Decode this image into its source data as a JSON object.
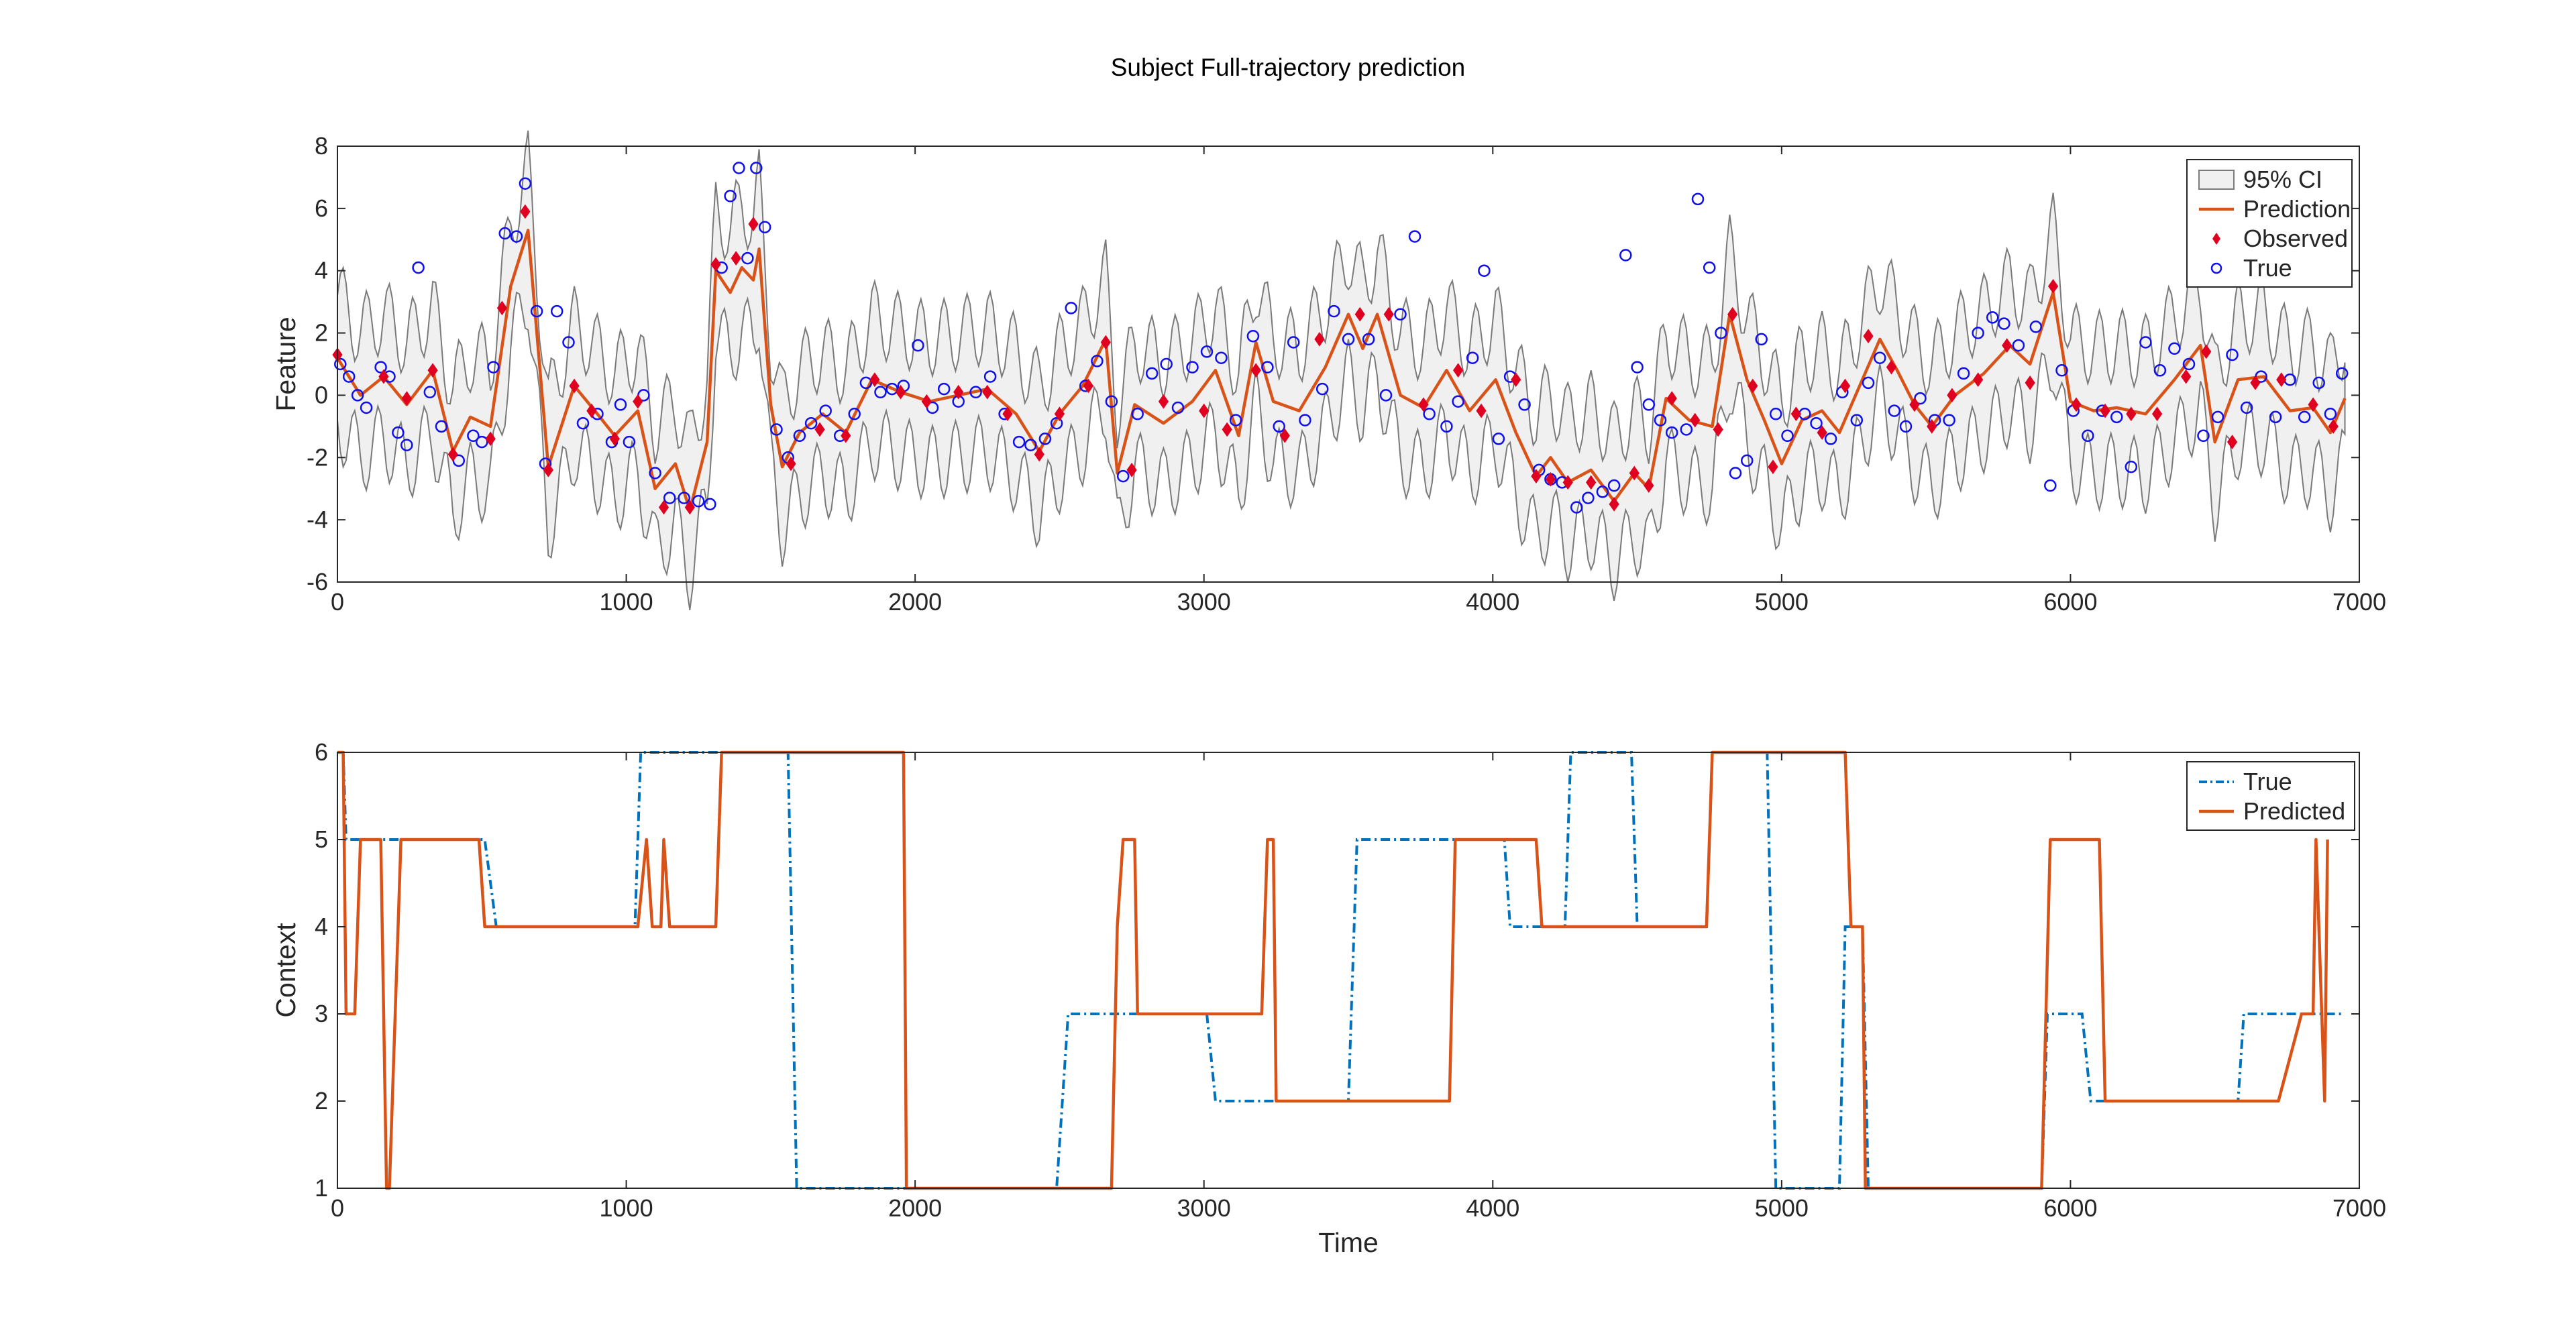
{
  "figure": {
    "title": "Subject Full-trajectory prediction"
  },
  "colors": {
    "prediction": "#d95319",
    "true_context": "#0072bd",
    "observed": "#e00020",
    "true_points": "#1010ee",
    "ci_fill": "#f0f0f0",
    "ci_edge": "#7a7a7a"
  },
  "chart_data": [
    {
      "type": "line",
      "title": "Subject Full-trajectory prediction",
      "xlabel": "",
      "ylabel": "Feature",
      "xlim": [
        0,
        7000
      ],
      "ylim": [
        -6,
        8
      ],
      "xticks": [
        0,
        1000,
        2000,
        3000,
        4000,
        5000,
        6000,
        7000
      ],
      "yticks": [
        -6,
        -4,
        -2,
        0,
        2,
        4,
        6,
        8
      ],
      "legend": {
        "position": "top-right",
        "entries": [
          "95% CI",
          "Prediction",
          "Observed",
          "True"
        ]
      },
      "series": [
        {
          "name": "Prediction",
          "x": [
            0,
            80,
            160,
            240,
            330,
            400,
            460,
            530,
            600,
            660,
            730,
            820,
            900,
            960,
            1040,
            1100,
            1170,
            1220,
            1280,
            1310,
            1360,
            1400,
            1440,
            1460,
            1500,
            1540,
            1600,
            1680,
            1760,
            1850,
            1950,
            2050,
            2150,
            2250,
            2350,
            2430,
            2500,
            2580,
            2660,
            2700,
            2760,
            2860,
            2960,
            3040,
            3120,
            3180,
            3240,
            3330,
            3420,
            3500,
            3550,
            3600,
            3680,
            3760,
            3840,
            3920,
            4010,
            4080,
            4150,
            4200,
            4260,
            4340,
            4420,
            4490,
            4540,
            4600,
            4680,
            4760,
            4820,
            4880,
            4940,
            5000,
            5070,
            5140,
            5200,
            5270,
            5340,
            5400,
            5460,
            5520,
            5600,
            5700,
            5790,
            5860,
            5940,
            6000,
            6080,
            6160,
            6260,
            6360,
            6450,
            6500,
            6580,
            6670,
            6760,
            6840,
            6900,
            6950
          ],
          "values": [
            1.2,
            0.0,
            0.6,
            -0.3,
            0.8,
            -1.8,
            -0.7,
            -1.0,
            3.5,
            5.3,
            -2.3,
            0.3,
            -0.6,
            -1.3,
            -0.5,
            -3.0,
            -2.2,
            -3.7,
            -1.5,
            4.0,
            3.3,
            4.1,
            3.7,
            4.7,
            -0.3,
            -2.3,
            -1.2,
            -0.6,
            -1.2,
            0.5,
            0.1,
            -0.2,
            0.0,
            0.2,
            -0.6,
            -1.8,
            -0.6,
            0.3,
            1.8,
            -2.5,
            -0.3,
            -0.9,
            -0.2,
            0.8,
            -1.3,
            1.7,
            -0.2,
            -0.5,
            0.9,
            2.6,
            1.5,
            2.6,
            0.0,
            -0.4,
            0.8,
            -0.5,
            0.5,
            -1.2,
            -2.6,
            -2.0,
            -2.8,
            -2.4,
            -3.4,
            -2.5,
            -3.0,
            -0.1,
            -0.8,
            -1.0,
            2.6,
            0.5,
            -0.8,
            -2.2,
            -0.8,
            -0.5,
            -1.2,
            0.3,
            1.8,
            0.8,
            -0.3,
            -1.0,
            0.0,
            0.7,
            1.6,
            1.0,
            3.3,
            -0.2,
            -0.5,
            -0.4,
            -0.6,
            0.5,
            1.6,
            -1.5,
            0.5,
            0.6,
            -0.5,
            -0.4,
            -1.2,
            -0.1
          ]
        },
        {
          "name": "Observed",
          "x": [
            0,
            160,
            240,
            330,
            400,
            530,
            570,
            650,
            730,
            820,
            880,
            960,
            1040,
            1130,
            1220,
            1310,
            1380,
            1440,
            1570,
            1670,
            1760,
            1860,
            1950,
            2040,
            2150,
            2250,
            2320,
            2430,
            2500,
            2600,
            2660,
            2750,
            2860,
            3000,
            3080,
            3180,
            3280,
            3400,
            3540,
            3640,
            3760,
            3880,
            3960,
            4080,
            4150,
            4200,
            4260,
            4340,
            4420,
            4490,
            4540,
            4620,
            4700,
            4780,
            4830,
            4900,
            4970,
            5050,
            5140,
            5220,
            5300,
            5380,
            5460,
            5520,
            5590,
            5680,
            5780,
            5860,
            5940,
            6020,
            6120,
            6210,
            6300,
            6400,
            6470,
            6560,
            6640,
            6730,
            6840,
            6910
          ],
          "values": [
            1.3,
            0.6,
            -0.1,
            0.8,
            -1.9,
            -1.4,
            2.8,
            5.9,
            -2.4,
            0.3,
            -0.5,
            -1.4,
            -0.2,
            -3.6,
            -3.6,
            4.2,
            4.4,
            5.5,
            -2.2,
            -1.1,
            -1.3,
            0.5,
            0.1,
            -0.2,
            0.1,
            0.1,
            -0.6,
            -1.9,
            -0.6,
            0.3,
            1.7,
            -2.4,
            -0.2,
            -0.5,
            -1.1,
            0.8,
            -1.3,
            1.8,
            2.6,
            2.6,
            -0.3,
            0.8,
            -0.5,
            0.5,
            -2.6,
            -2.7,
            -2.8,
            -2.8,
            -3.5,
            -2.5,
            -2.9,
            -0.1,
            -0.8,
            -1.1,
            2.6,
            0.3,
            -2.3,
            -0.6,
            -1.2,
            0.3,
            1.9,
            0.9,
            -0.3,
            -1.0,
            0.0,
            0.5,
            1.6,
            0.4,
            3.5,
            -0.3,
            -0.5,
            -0.6,
            -0.6,
            0.6,
            1.4,
            -1.5,
            0.4,
            0.5,
            -0.3,
            -1.0
          ]
        },
        {
          "name": "True",
          "x": [
            10,
            40,
            70,
            100,
            150,
            180,
            210,
            240,
            280,
            320,
            360,
            420,
            470,
            500,
            540,
            580,
            620,
            650,
            690,
            720,
            760,
            800,
            850,
            900,
            950,
            980,
            1010,
            1060,
            1100,
            1150,
            1200,
            1250,
            1290,
            1330,
            1360,
            1390,
            1420,
            1450,
            1480,
            1520,
            1560,
            1600,
            1640,
            1690,
            1740,
            1790,
            1830,
            1880,
            1920,
            1960,
            2010,
            2060,
            2100,
            2150,
            2210,
            2260,
            2310,
            2360,
            2400,
            2450,
            2490,
            2540,
            2590,
            2630,
            2680,
            2720,
            2770,
            2820,
            2870,
            2910,
            2960,
            3010,
            3060,
            3110,
            3170,
            3220,
            3260,
            3310,
            3350,
            3410,
            3450,
            3500,
            3570,
            3630,
            3680,
            3730,
            3780,
            3840,
            3880,
            3930,
            3970,
            4020,
            4060,
            4110,
            4160,
            4200,
            4240,
            4290,
            4330,
            4380,
            4420,
            4460,
            4500,
            4540,
            4580,
            4620,
            4670,
            4710,
            4750,
            4790,
            4840,
            4880,
            4930,
            4980,
            5020,
            5080,
            5120,
            5170,
            5210,
            5260,
            5300,
            5340,
            5390,
            5430,
            5480,
            5530,
            5580,
            5630,
            5680,
            5730,
            5770,
            5820,
            5880,
            5930,
            5970,
            6010,
            6060,
            6110,
            6160,
            6210,
            6260,
            6310,
            6360,
            6410,
            6460,
            6510,
            6560,
            6610,
            6660,
            6710,
            6760,
            6810,
            6860,
            6900,
            6940
          ],
          "values": [
            1.0,
            0.6,
            0.0,
            -0.4,
            0.9,
            0.6,
            -1.2,
            -1.6,
            4.1,
            0.1,
            -1.0,
            -2.1,
            -1.3,
            -1.5,
            0.9,
            5.2,
            5.1,
            6.8,
            2.7,
            -2.2,
            2.7,
            1.7,
            -0.9,
            -0.6,
            -1.5,
            -0.3,
            -1.5,
            0.0,
            -2.5,
            -3.3,
            -3.3,
            -3.4,
            -3.5,
            4.1,
            6.4,
            7.3,
            4.4,
            7.3,
            5.4,
            -1.1,
            -2.0,
            -1.3,
            -0.9,
            -0.5,
            -1.3,
            -0.6,
            0.4,
            0.1,
            0.2,
            0.3,
            1.6,
            -0.4,
            0.2,
            -0.2,
            0.1,
            0.6,
            -0.6,
            -1.5,
            -1.6,
            -1.4,
            -0.9,
            2.8,
            0.3,
            1.1,
            -0.2,
            -2.6,
            -0.6,
            0.7,
            1.0,
            -0.4,
            0.9,
            1.4,
            1.2,
            -0.8,
            1.9,
            0.9,
            -1.0,
            1.7,
            -0.8,
            0.2,
            2.7,
            1.8,
            1.8,
            0.0,
            2.6,
            5.1,
            -0.6,
            -1.0,
            -0.2,
            1.2,
            4.0,
            -1.4,
            0.6,
            -0.3,
            -2.4,
            -2.7,
            -2.8,
            -3.6,
            -3.3,
            -3.1,
            -2.9,
            4.5,
            0.9,
            -0.3,
            -0.8,
            -1.2,
            -1.1,
            6.3,
            4.1,
            2.0,
            -2.5,
            -2.1,
            1.8,
            -0.6,
            -1.3,
            -0.6,
            -0.9,
            -1.4,
            0.1,
            -0.8,
            0.4,
            1.2,
            -0.5,
            -1.0,
            -0.1,
            -0.8,
            -0.8,
            0.7,
            2.0,
            2.5,
            2.3,
            1.6,
            2.2,
            -2.9,
            0.8,
            -0.5,
            -1.3,
            -0.5,
            -0.7,
            -2.3,
            1.7,
            0.8,
            1.5,
            1.0,
            -1.3,
            -0.7,
            1.3,
            -0.4,
            0.6,
            -0.7,
            0.5,
            -0.7,
            0.4,
            -0.6,
            0.7
          ]
        }
      ]
    },
    {
      "type": "line",
      "title": "",
      "xlabel": "Time",
      "ylabel": "Context",
      "xlim": [
        0,
        7000
      ],
      "ylim": [
        1,
        6
      ],
      "xticks": [
        0,
        1000,
        2000,
        3000,
        4000,
        5000,
        6000,
        7000
      ],
      "yticks": [
        1,
        2,
        3,
        4,
        5,
        6
      ],
      "legend": {
        "position": "top-right",
        "entries": [
          "True",
          "Predicted"
        ]
      },
      "series": [
        {
          "name": "True",
          "x": [
            0,
            20,
            30,
            510,
            550,
            1030,
            1050,
            1140,
            1150,
            1320,
            1340,
            1560,
            1590,
            1940,
            1960,
            2490,
            2530,
            2680,
            2700,
            3010,
            3040,
            3500,
            3530,
            3850,
            3870,
            4040,
            4060,
            4200,
            4220,
            4250,
            4270,
            4480,
            4500,
            4740,
            4760,
            4950,
            4980,
            5200,
            5220,
            5280,
            5300,
            5900,
            5920,
            6040,
            6070,
            6580,
            6600,
            6940
          ],
          "values": [
            6,
            6,
            5,
            5,
            4,
            4,
            6,
            6,
            6,
            6,
            6,
            6,
            1,
            1,
            1,
            1,
            3,
            3,
            3,
            3,
            2,
            2,
            5,
            5,
            5,
            5,
            4,
            4,
            4,
            4,
            6,
            6,
            4,
            4,
            6,
            6,
            1,
            1,
            4,
            4,
            1,
            1,
            3,
            3,
            2,
            2,
            3,
            3
          ]
        },
        {
          "name": "Predicted",
          "x": [
            0,
            20,
            30,
            60,
            80,
            120,
            150,
            170,
            180,
            220,
            240,
            300,
            490,
            510,
            1020,
            1040,
            1070,
            1090,
            1100,
            1120,
            1130,
            1150,
            1160,
            1170,
            1310,
            1330,
            1350,
            1930,
            1960,
            1970,
            2660,
            2680,
            2700,
            2720,
            2760,
            2770,
            2780,
            3170,
            3200,
            3220,
            3240,
            3250,
            3850,
            3870,
            4150,
            4170,
            4180,
            4740,
            4760,
            5180,
            5200,
            5220,
            5240,
            5280,
            5290,
            5900,
            5930,
            6100,
            6120,
            6710,
            6720,
            6800,
            6840,
            6850,
            6880,
            6890
          ],
          "values": [
            6,
            6,
            3,
            3,
            5,
            5,
            5,
            1,
            1,
            5,
            5,
            5,
            5,
            4,
            4,
            4,
            5,
            4,
            4,
            4,
            5,
            4,
            4,
            4,
            4,
            6,
            6,
            6,
            6,
            1,
            1,
            1,
            4,
            5,
            5,
            3,
            3,
            3,
            3,
            5,
            5,
            2,
            2,
            5,
            5,
            4,
            4,
            4,
            6,
            6,
            6,
            6,
            4,
            4,
            1,
            1,
            5,
            5,
            2,
            2,
            2,
            3,
            3,
            5,
            2,
            5
          ]
        }
      ]
    }
  ]
}
